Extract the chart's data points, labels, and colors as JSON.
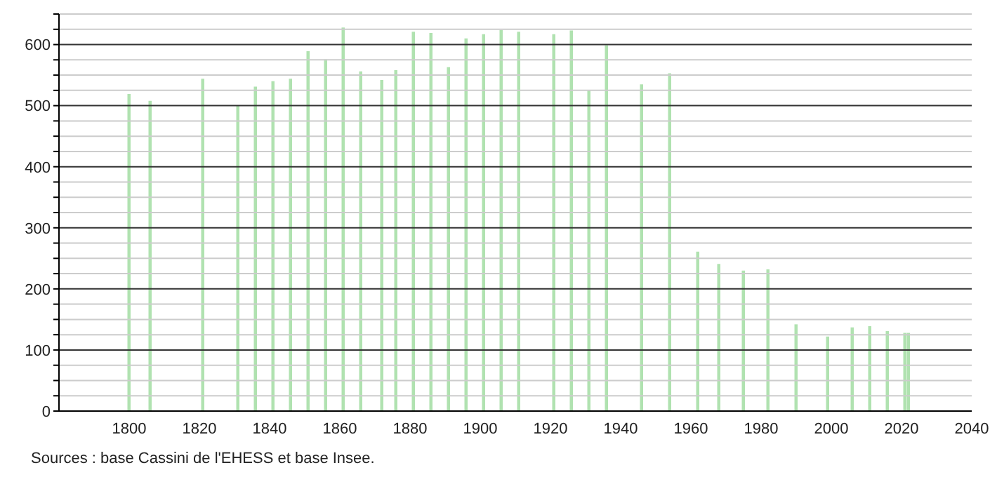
{
  "chart_data": {
    "type": "bar",
    "x": [
      1800,
      1806,
      1821,
      1831,
      1836,
      1841,
      1846,
      1851,
      1856,
      1861,
      1866,
      1872,
      1876,
      1881,
      1886,
      1891,
      1896,
      1901,
      1906,
      1911,
      1921,
      1926,
      1931,
      1936,
      1946,
      1954,
      1962,
      1968,
      1975,
      1982,
      1990,
      1999,
      2006,
      2011,
      2016,
      2021,
      2022
    ],
    "values": [
      519,
      508,
      544,
      500,
      531,
      540,
      544,
      589,
      576,
      628,
      556,
      542,
      558,
      621,
      619,
      563,
      610,
      617,
      624,
      621,
      617,
      623,
      525,
      599,
      535,
      553,
      261,
      241,
      230,
      232,
      142,
      122,
      137,
      139,
      131,
      128,
      128
    ],
    "color": "#b0e2b0",
    "xlim": [
      1780,
      2040
    ],
    "xticks": [
      1800,
      1820,
      1840,
      1860,
      1880,
      1900,
      1920,
      1940,
      1960,
      1980,
      2000,
      2020,
      2040
    ],
    "ylim": [
      0,
      650
    ],
    "yticks": [
      0,
      {
        "value": 25,
        "label": null
      },
      {
        "value": 50,
        "label": null
      },
      {
        "value": 75,
        "label": null
      },
      100,
      {
        "value": 125,
        "label": null
      },
      {
        "value": 150,
        "label": null
      },
      {
        "value": 175,
        "label": null
      },
      200,
      {
        "value": 225,
        "label": null
      },
      {
        "value": 250,
        "label": null
      },
      {
        "value": 275,
        "label": null
      },
      300,
      {
        "value": 325,
        "label": null
      },
      {
        "value": 350,
        "label": null
      },
      {
        "value": 375,
        "label": null
      },
      400,
      {
        "value": 425,
        "label": null
      },
      {
        "value": 450,
        "label": null
      },
      {
        "value": 475,
        "label": null
      },
      500,
      {
        "value": 525,
        "label": null
      },
      {
        "value": 550,
        "label": null
      },
      {
        "value": 575,
        "label": null
      },
      600,
      {
        "value": 625,
        "label": null
      },
      {
        "value": 650,
        "label": null
      }
    ],
    "grid": "y",
    "annotations": [
      "Sources : base Cassini de l'EHESS et base Insee."
    ]
  }
}
